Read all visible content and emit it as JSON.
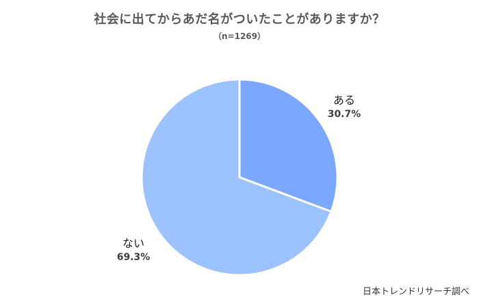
{
  "chart_data": {
    "type": "pie",
    "title": "社会に出てからあだ名がついたことがありますか？",
    "subtitle": "（n=1269）",
    "slices": [
      {
        "label": "ある",
        "value": 30.7,
        "value_label": "30.7%",
        "color": "#7BA7FF"
      },
      {
        "label": "ない",
        "value": 69.3,
        "value_label": "69.3%",
        "color": "#9CC3FF"
      }
    ],
    "start_angle_deg": 0,
    "direction": "clockwise",
    "legend": "none"
  },
  "footer": {
    "credit": "日本トレンドリサーチ調べ"
  }
}
